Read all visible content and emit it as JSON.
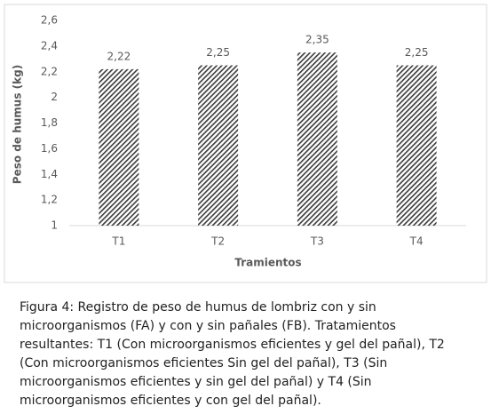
{
  "chart_data": {
    "type": "bar",
    "y_label": "Peso de humus (kg)",
    "x_label": "Tramientos",
    "categories": [
      "T1",
      "T2",
      "T3",
      "T4"
    ],
    "values": [
      2.22,
      2.25,
      2.35,
      2.25
    ],
    "value_labels": [
      "2,22",
      "2,25",
      "2,35",
      "2,25"
    ],
    "color": "#3a3a3a",
    "pattern": "hatch",
    "ylim": [
      1,
      2.6
    ],
    "yticks": [
      1,
      {
        "value": 1.2,
        "label": "1,2"
      },
      {
        "value": 1.4,
        "label": "1,4"
      },
      {
        "value": 1.6,
        "label": "1,6"
      },
      {
        "value": 1.8,
        "label": "1,8"
      },
      2,
      {
        "value": 2.2,
        "label": "2,2"
      },
      {
        "value": 2.4,
        "label": "2,4"
      },
      {
        "value": 2.6,
        "label": "2,6"
      }
    ],
    "grid": false
  },
  "caption": {
    "label": "Figura 4:",
    "text": "Registro de peso de humus de lombriz con y sin microorganismos (FA) y con y sin pañales (FB). Tratamientos resultantes: T1 (Con microorganismos eficientes y gel del pañal), T2 (Con microorganismos eficientes Sin gel del pañal), T3 (Sin microorganismos eficientes y sin gel del pañal) y T4 (Sin microorganismos eficientes y con gel del pañal)."
  }
}
